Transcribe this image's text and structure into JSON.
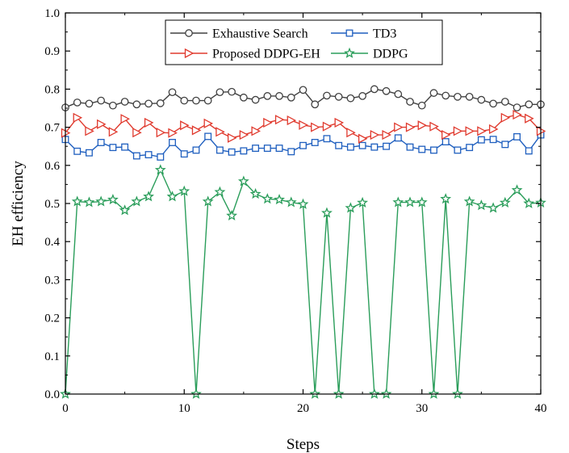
{
  "chart_data": {
    "type": "line",
    "xlabel": "Steps",
    "ylabel": "EH efficiency",
    "xlim": [
      0,
      40
    ],
    "ylim": [
      0.0,
      1.0
    ],
    "xticks": [
      0,
      10,
      20,
      30,
      40
    ],
    "yticks": [
      0.0,
      0.1,
      0.2,
      0.3,
      0.4,
      0.5,
      0.6,
      0.7,
      0.8,
      0.9,
      1.0
    ],
    "grid": false,
    "legend_placement": "top-center",
    "x": [
      0,
      1,
      2,
      3,
      4,
      5,
      6,
      7,
      8,
      9,
      10,
      11,
      12,
      13,
      14,
      15,
      16,
      17,
      18,
      19,
      20,
      21,
      22,
      23,
      24,
      25,
      26,
      27,
      28,
      29,
      30,
      31,
      32,
      33,
      34,
      35,
      36,
      37,
      38,
      39,
      40
    ],
    "series": [
      {
        "name": "Exhaustive Search",
        "color": "#404040",
        "marker": "circle",
        "values": [
          0.752,
          0.765,
          0.762,
          0.77,
          0.757,
          0.767,
          0.76,
          0.762,
          0.763,
          0.792,
          0.77,
          0.77,
          0.77,
          0.792,
          0.793,
          0.778,
          0.772,
          0.782,
          0.782,
          0.778,
          0.798,
          0.76,
          0.783,
          0.78,
          0.776,
          0.782,
          0.8,
          0.795,
          0.787,
          0.767,
          0.757,
          0.79,
          0.783,
          0.78,
          0.78,
          0.772,
          0.762,
          0.767,
          0.752,
          0.76,
          0.76
        ]
      },
      {
        "name": "TD3",
        "color": "#1f5fbf",
        "marker": "square",
        "values": [
          0.668,
          0.637,
          0.633,
          0.66,
          0.647,
          0.648,
          0.625,
          0.628,
          0.622,
          0.66,
          0.63,
          0.64,
          0.676,
          0.64,
          0.635,
          0.638,
          0.645,
          0.645,
          0.645,
          0.636,
          0.652,
          0.66,
          0.67,
          0.652,
          0.648,
          0.652,
          0.648,
          0.65,
          0.672,
          0.648,
          0.642,
          0.64,
          0.662,
          0.64,
          0.647,
          0.667,
          0.668,
          0.655,
          0.675,
          0.638,
          0.68
        ]
      },
      {
        "name": "Proposed DDPG-EH",
        "color": "#e03a2e",
        "marker": "triangle-right",
        "values": [
          0.685,
          0.725,
          0.69,
          0.708,
          0.688,
          0.722,
          0.686,
          0.712,
          0.686,
          0.685,
          0.705,
          0.692,
          0.71,
          0.688,
          0.672,
          0.68,
          0.69,
          0.712,
          0.72,
          0.718,
          0.706,
          0.7,
          0.702,
          0.712,
          0.686,
          0.67,
          0.68,
          0.68,
          0.7,
          0.7,
          0.705,
          0.702,
          0.68,
          0.69,
          0.69,
          0.69,
          0.695,
          0.725,
          0.733,
          0.723,
          0.69
        ]
      },
      {
        "name": "DDPG",
        "color": "#2a9d5a",
        "marker": "star",
        "values": [
          0.0,
          0.505,
          0.503,
          0.505,
          0.51,
          0.482,
          0.505,
          0.518,
          0.588,
          0.518,
          0.532,
          0.0,
          0.505,
          0.53,
          0.468,
          0.558,
          0.525,
          0.512,
          0.51,
          0.503,
          0.498,
          0.0,
          0.475,
          0.0,
          0.488,
          0.502,
          0.0,
          0.0,
          0.503,
          0.503,
          0.503,
          0.0,
          0.512,
          0.0,
          0.505,
          0.495,
          0.488,
          0.502,
          0.535,
          0.5,
          0.502
        ]
      }
    ]
  }
}
